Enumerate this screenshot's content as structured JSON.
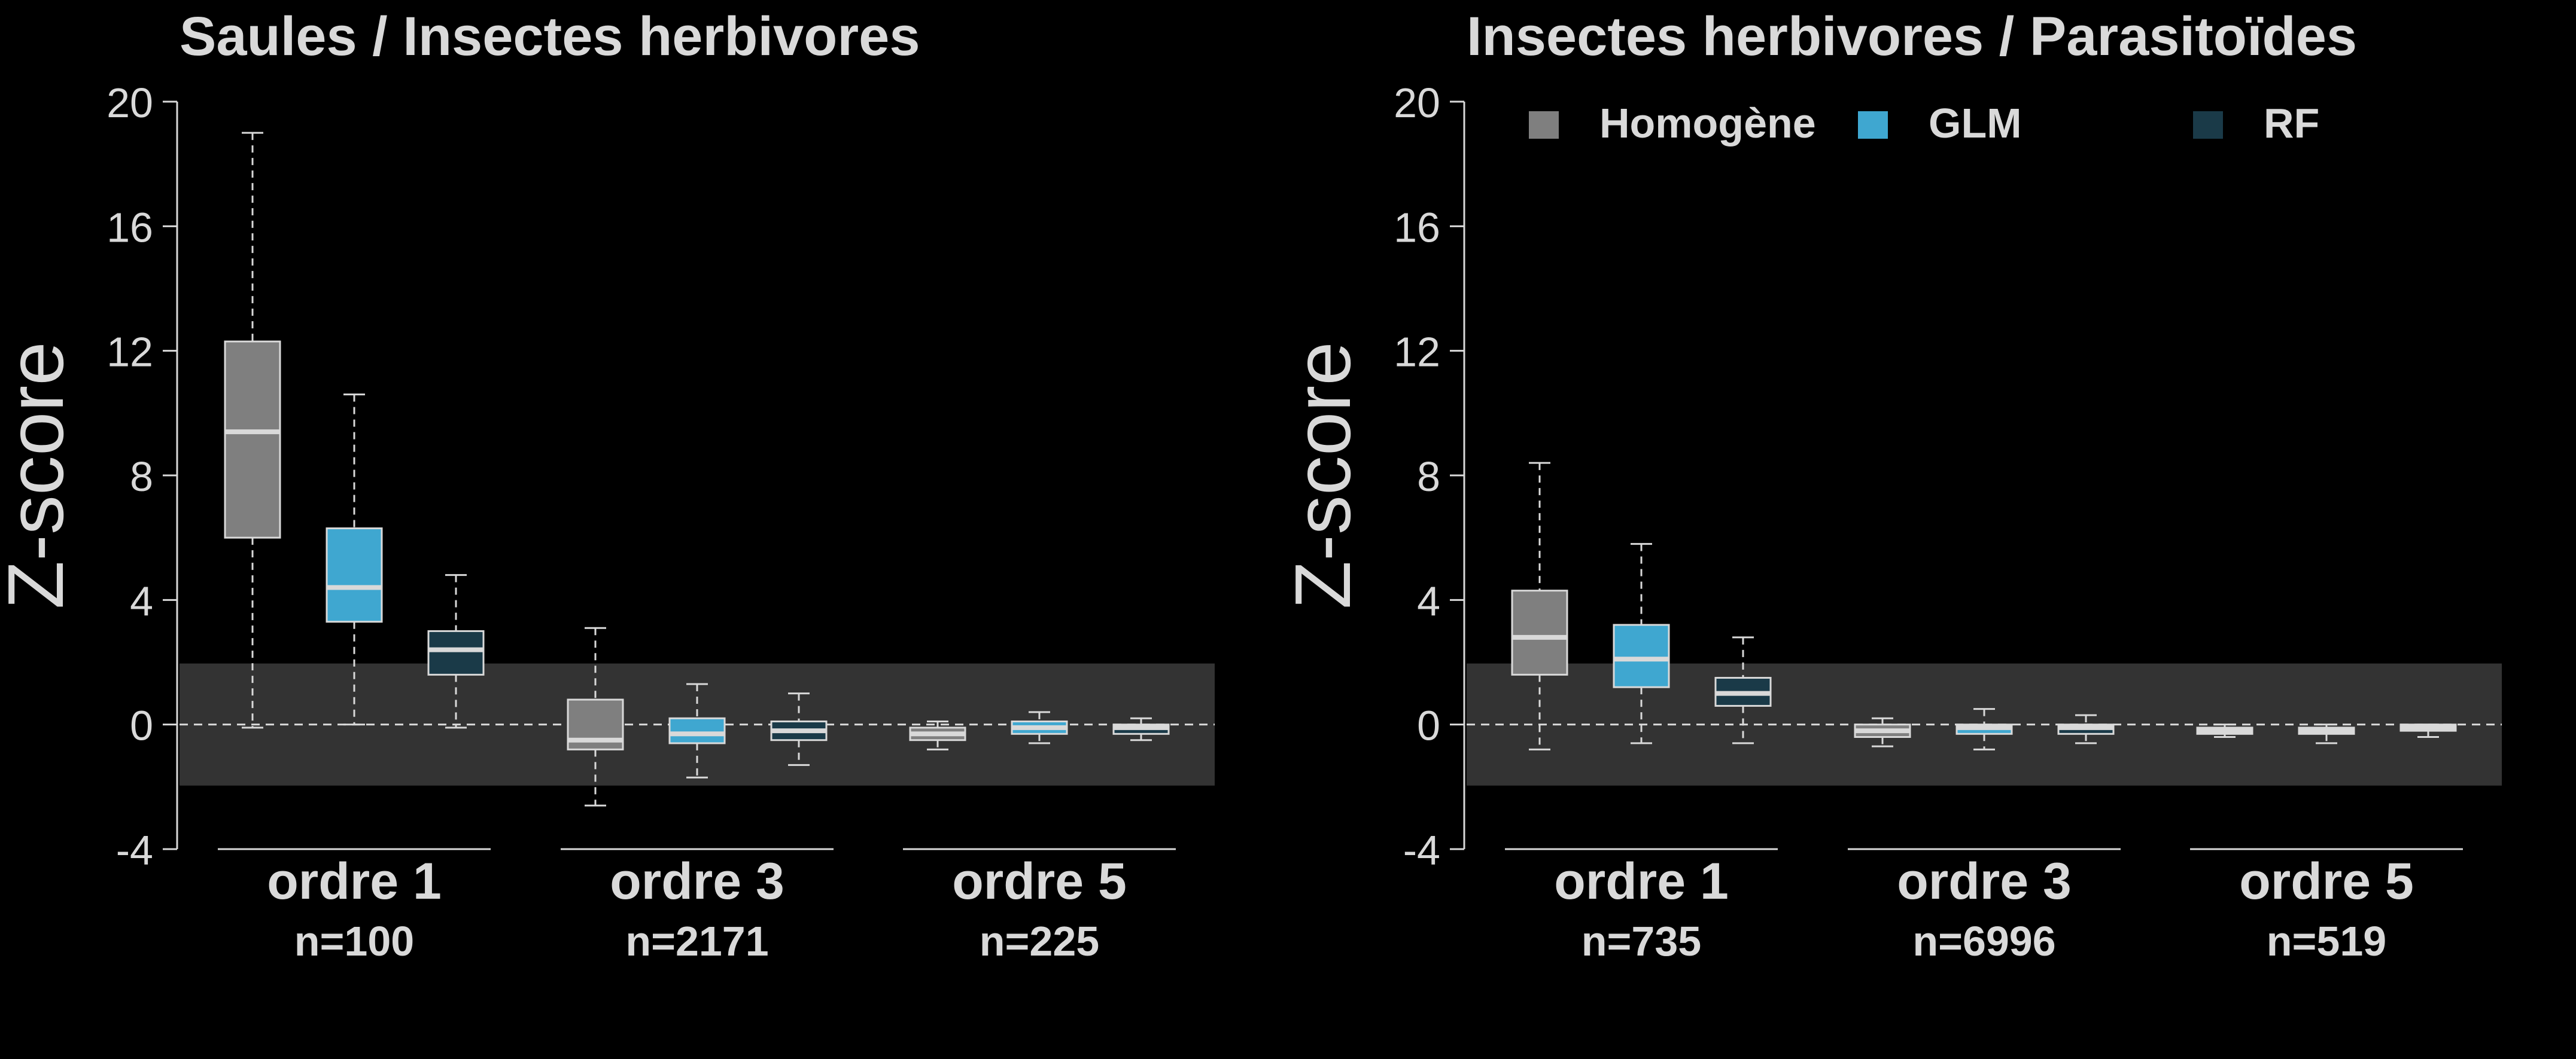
{
  "chart_data": [
    {
      "type": "box",
      "title": "Saules / Insectes herbivores",
      "ylabel": "Z-score",
      "ylim": [
        -4,
        20
      ],
      "yticks": [
        "-4",
        "0",
        "4",
        "8",
        "12",
        "16",
        "20"
      ],
      "null_band": [
        -1.96,
        1.96
      ],
      "reference_line": 0,
      "groups": [
        {
          "label": "ordre 1",
          "n_label": "n=100"
        },
        {
          "label": "ordre 3",
          "n_label": "n=2171"
        },
        {
          "label": "ordre 5",
          "n_label": "n=225"
        }
      ],
      "series": [
        {
          "name": "Homogène",
          "color": "#7f7f7f",
          "boxes": [
            {
              "min": -0.1,
              "q1": 6.0,
              "median": 9.4,
              "q3": 12.3,
              "max": 19.0
            },
            {
              "min": -2.6,
              "q1": -0.8,
              "median": -0.5,
              "q3": 0.8,
              "max": 3.1
            },
            {
              "min": -0.8,
              "q1": -0.5,
              "median": -0.3,
              "q3": -0.1,
              "max": 0.1
            }
          ]
        },
        {
          "name": "GLM",
          "color": "#3fa7d0",
          "boxes": [
            {
              "min": 0.0,
              "q1": 3.3,
              "median": 4.4,
              "q3": 6.3,
              "max": 10.6
            },
            {
              "min": -1.7,
              "q1": -0.6,
              "median": -0.3,
              "q3": 0.2,
              "max": 1.3
            },
            {
              "min": -0.6,
              "q1": -0.3,
              "median": -0.1,
              "q3": 0.1,
              "max": 0.4
            }
          ]
        },
        {
          "name": "RF",
          "color": "#1a3a48",
          "boxes": [
            {
              "min": -0.1,
              "q1": 1.6,
              "median": 2.4,
              "q3": 3.0,
              "max": 4.8
            },
            {
              "min": -1.3,
              "q1": -0.5,
              "median": -0.2,
              "q3": 0.1,
              "max": 1.0
            },
            {
              "min": -0.5,
              "q1": -0.3,
              "median": -0.1,
              "q3": 0.0,
              "max": 0.2
            }
          ]
        }
      ]
    },
    {
      "type": "box",
      "title": "Insectes herbivores / Parasitoïdes",
      "ylabel": "Z-score",
      "ylim": [
        -4,
        20
      ],
      "yticks": [
        "-4",
        "0",
        "4",
        "8",
        "12",
        "16",
        "20"
      ],
      "null_band": [
        -1.96,
        1.96
      ],
      "reference_line": 0,
      "legend": {
        "position": "top",
        "entries": [
          "Homogène",
          "GLM",
          "RF"
        ]
      },
      "groups": [
        {
          "label": "ordre 1",
          "n_label": "n=735"
        },
        {
          "label": "ordre 3",
          "n_label": "n=6996"
        },
        {
          "label": "ordre 5",
          "n_label": "n=519"
        }
      ],
      "series": [
        {
          "name": "Homogène",
          "color": "#7f7f7f",
          "boxes": [
            {
              "min": -0.8,
              "q1": 1.6,
              "median": 2.8,
              "q3": 4.3,
              "max": 8.4
            },
            {
              "min": -0.7,
              "q1": -0.4,
              "median": -0.2,
              "q3": 0.0,
              "max": 0.2
            },
            {
              "min": -0.4,
              "q1": -0.3,
              "median": -0.2,
              "q3": -0.1,
              "max": 0.0
            }
          ]
        },
        {
          "name": "GLM",
          "color": "#3fa7d0",
          "boxes": [
            {
              "min": -0.6,
              "q1": 1.2,
              "median": 2.1,
              "q3": 3.2,
              "max": 5.8
            },
            {
              "min": -0.8,
              "q1": -0.3,
              "median": -0.1,
              "q3": 0.0,
              "max": 0.5
            },
            {
              "min": -0.6,
              "q1": -0.3,
              "median": -0.2,
              "q3": -0.1,
              "max": 0.0
            }
          ]
        },
        {
          "name": "RF",
          "color": "#1a3a48",
          "boxes": [
            {
              "min": -0.6,
              "q1": 0.6,
              "median": 1.0,
              "q3": 1.5,
              "max": 2.8
            },
            {
              "min": -0.6,
              "q1": -0.3,
              "median": -0.1,
              "q3": 0.0,
              "max": 0.3
            },
            {
              "min": -0.4,
              "q1": -0.2,
              "median": -0.1,
              "q3": 0.0,
              "max": 0.0
            }
          ]
        }
      ]
    }
  ]
}
